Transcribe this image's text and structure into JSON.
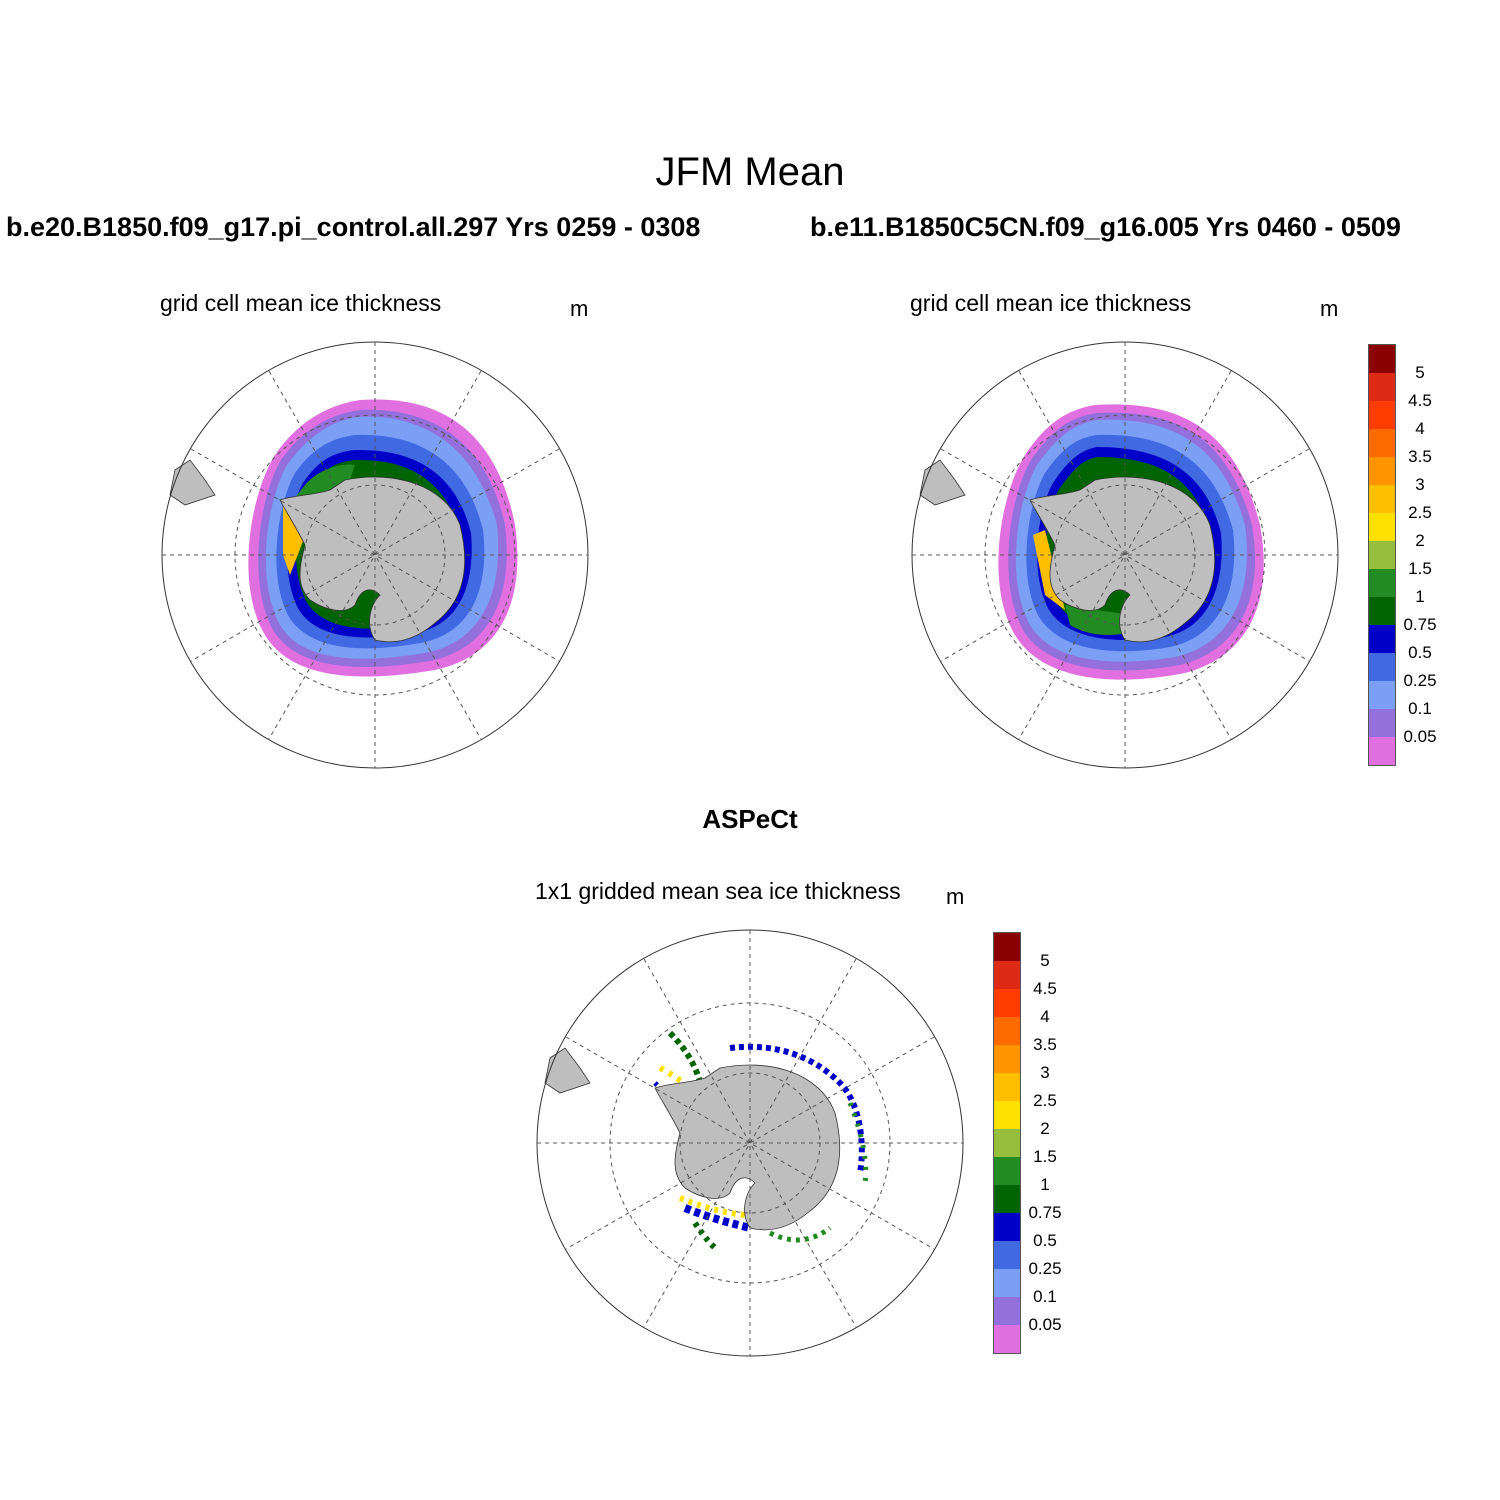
{
  "figure": {
    "title": "JFM Mean",
    "bottom_title": "ASPeCt"
  },
  "panels": {
    "top_left": {
      "case": "b.e20.B1850.f09_g17.pi_control.all.297  Yrs 0259 - 0308",
      "subtitle": "grid cell mean ice thickness",
      "units": "m"
    },
    "top_right": {
      "case": "b.e11.B1850C5CN.f09_g16.005  Yrs 0460 - 0509",
      "subtitle": "grid cell mean ice thickness",
      "units": "m"
    },
    "bottom": {
      "subtitle": "1x1 gridded mean sea ice thickness",
      "units": "m"
    }
  },
  "colorbar": {
    "labels": [
      "5",
      "4.5",
      "4",
      "3.5",
      "3",
      "2.5",
      "2",
      "1.5",
      "1",
      "0.75",
      "0.5",
      "0.25",
      "0.1",
      "0.05"
    ],
    "colors": [
      "#8b0000",
      "#dc2a14",
      "#ff3c00",
      "#ff6a00",
      "#ff9400",
      "#ffbe00",
      "#ffe100",
      "#96be3c",
      "#228b22",
      "#006400",
      "#0000c8",
      "#4169e1",
      "#7b9ff5",
      "#9370db",
      "#e070e0"
    ]
  },
  "map_colors": {
    "land": "#bebebe",
    "ocean": "#ffffff",
    "grid": "#555555"
  }
}
